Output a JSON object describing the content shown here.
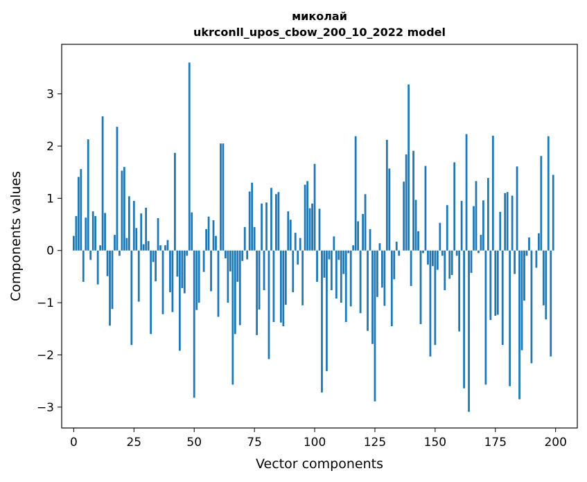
{
  "chart_data": {
    "type": "bar",
    "title": "миколай\nukrconll_upos_cbow_200_10_2022 model",
    "title_lines": [
      "миколай",
      "ukrconll_upos_cbow_200_10_2022 model"
    ],
    "xlabel": "Vector components",
    "ylabel": "Components values",
    "xlim": [
      -5,
      209
    ],
    "ylim": [
      -3.4,
      3.95
    ],
    "xticks": [
      0,
      25,
      50,
      75,
      100,
      125,
      150,
      175,
      200
    ],
    "yticks": [
      -3,
      -2,
      -1,
      0,
      1,
      2,
      3
    ],
    "ytick_labels": [
      "−3",
      "−2",
      "−1",
      "0",
      "1",
      "2",
      "3"
    ],
    "grid": false,
    "bar_color": "#1f77b4",
    "values": [
      0.28,
      0.66,
      1.41,
      1.56,
      -0.6,
      0.63,
      2.13,
      -0.18,
      0.75,
      0.66,
      -0.65,
      0.1,
      2.57,
      0.72,
      -0.49,
      -1.44,
      -1.12,
      0.3,
      2.37,
      -0.1,
      1.53,
      1.6,
      0.24,
      1.04,
      -1.81,
      0.95,
      0.43,
      -0.98,
      0.71,
      0.12,
      0.82,
      0.18,
      -1.6,
      -0.22,
      -0.59,
      0.62,
      0.1,
      -1.22,
      0.1,
      0.2,
      -0.8,
      -1.18,
      1.87,
      -0.5,
      -1.92,
      -0.72,
      -0.82,
      -0.1,
      3.6,
      0.73,
      -2.82,
      -1.14,
      -1.0,
      0.0,
      -0.41,
      0.41,
      0.65,
      -0.78,
      0.58,
      0.28,
      -1.27,
      2.05,
      2.05,
      -0.15,
      -1.0,
      -0.4,
      -2.57,
      -1.6,
      -0.6,
      -1.43,
      -0.2,
      0.45,
      -0.17,
      1.13,
      1.3,
      0.45,
      -1.62,
      -1.13,
      0.9,
      -0.76,
      0.92,
      -2.08,
      1.2,
      -1.37,
      1.08,
      1.12,
      -1.38,
      -1.45,
      -1.04,
      0.75,
      0.59,
      -0.8,
      0.34,
      -0.27,
      0.24,
      -1.05,
      1.26,
      1.33,
      0.81,
      0.9,
      1.66,
      -0.6,
      0.8,
      -2.72,
      -0.52,
      -2.31,
      -0.17,
      -0.76,
      0.27,
      -0.92,
      -0.18,
      -1.0,
      -0.45,
      -1.37,
      -0.05,
      -1.07,
      0.1,
      2.19,
      0.56,
      -1.2,
      0.7,
      1.08,
      -1.54,
      0.41,
      -1.79,
      -2.89,
      -0.89,
      0.14,
      -0.71,
      -1.06,
      2.12,
      1.57,
      -1.45,
      -0.55,
      0.17,
      -0.1,
      0.0,
      1.32,
      1.84,
      3.18,
      -0.68,
      1.91,
      0.97,
      0.37,
      -1.41,
      -0.05,
      1.62,
      -0.27,
      -2.03,
      -0.3,
      -1.81,
      -0.37,
      0.53,
      -0.1,
      -0.76,
      0.87,
      -0.54,
      -0.47,
      1.69,
      -0.1,
      -1.55,
      0.95,
      -2.64,
      2.23,
      -3.09,
      -0.43,
      0.85,
      1.33,
      -0.05,
      0.3,
      0.96,
      -2.57,
      1.39,
      -1.33,
      2.2,
      -1.25,
      -1.23,
      0.74,
      -1.81,
      1.1,
      1.12,
      -2.6,
      1.05,
      -0.45,
      1.61,
      -2.85,
      -1.91,
      -0.96,
      -0.1,
      0.25,
      -2.16,
      0.0,
      -0.33,
      0.33,
      1.81,
      -1.05,
      -1.32,
      2.19,
      -2.03,
      1.45
    ]
  }
}
